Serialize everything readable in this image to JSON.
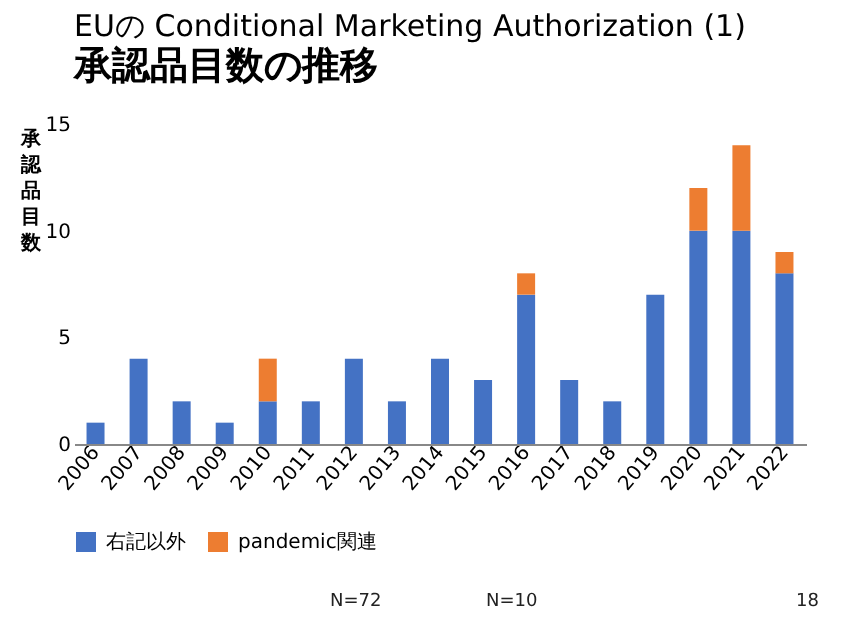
{
  "chart_data": {
    "type": "bar",
    "title": "EUの Conditional Marketing Authorization (1)",
    "subtitle": "承認品目数の推移",
    "ylabel": "承認品目数",
    "categories": [
      "2006",
      "2007",
      "2008",
      "2009",
      "2010",
      "2011",
      "2012",
      "2013",
      "2014",
      "2015",
      "2016",
      "2017",
      "2018",
      "2019",
      "2020",
      "2021",
      "2022"
    ],
    "stacked": true,
    "series": [
      {
        "name": "右記以外",
        "color": "#4472c4",
        "values": [
          1,
          4,
          2,
          1,
          2,
          2,
          4,
          2,
          4,
          3,
          7,
          3,
          2,
          7,
          10,
          10,
          8
        ]
      },
      {
        "name": "pandemic関連",
        "color": "#ed7d31",
        "values": [
          0,
          0,
          0,
          0,
          2,
          0,
          0,
          0,
          0,
          0,
          1,
          0,
          0,
          0,
          2,
          4,
          1
        ]
      }
    ],
    "ylim": [
      0,
      15
    ],
    "yticks": [
      0,
      5,
      10,
      15
    ],
    "grid": false,
    "legend": "bottom",
    "annotations": [
      "N=72",
      "N=10",
      "18"
    ]
  }
}
